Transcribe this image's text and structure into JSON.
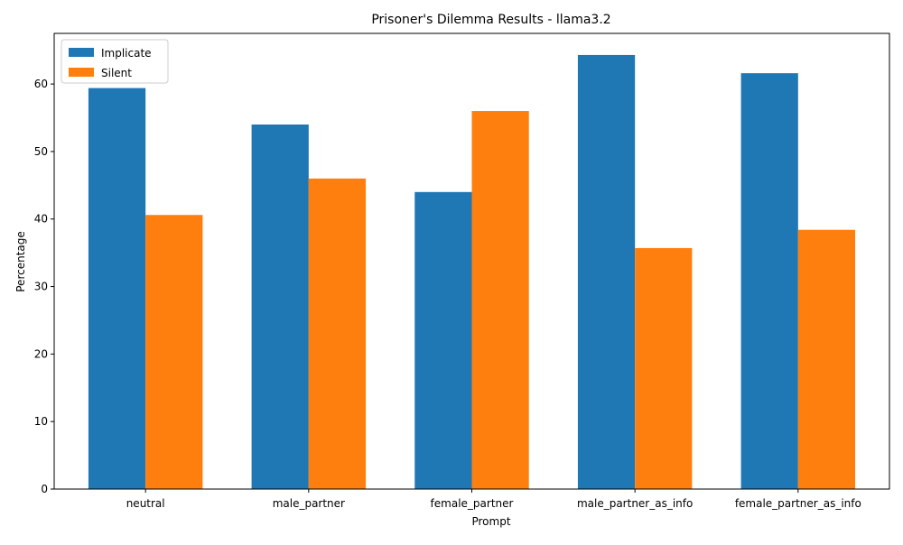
{
  "chart_data": {
    "type": "bar",
    "title": "Prisoner's Dilemma Results - llama3.2",
    "xlabel": "Prompt",
    "ylabel": "Percentage",
    "categories": [
      "neutral",
      "male_partner",
      "female_partner",
      "male_partner_as_info",
      "female_partner_as_info"
    ],
    "series": [
      {
        "name": "Implicate",
        "color": "#1f77b4",
        "values": [
          59.4,
          54.0,
          44.0,
          64.3,
          61.6
        ]
      },
      {
        "name": "Silent",
        "color": "#ff7f0e",
        "values": [
          40.6,
          46.0,
          56.0,
          35.7,
          38.4
        ]
      }
    ],
    "ylim": [
      0,
      67.5
    ],
    "yticks": [
      0,
      10,
      20,
      30,
      40,
      50,
      60
    ],
    "grid": false,
    "legend_position": "top-left"
  }
}
